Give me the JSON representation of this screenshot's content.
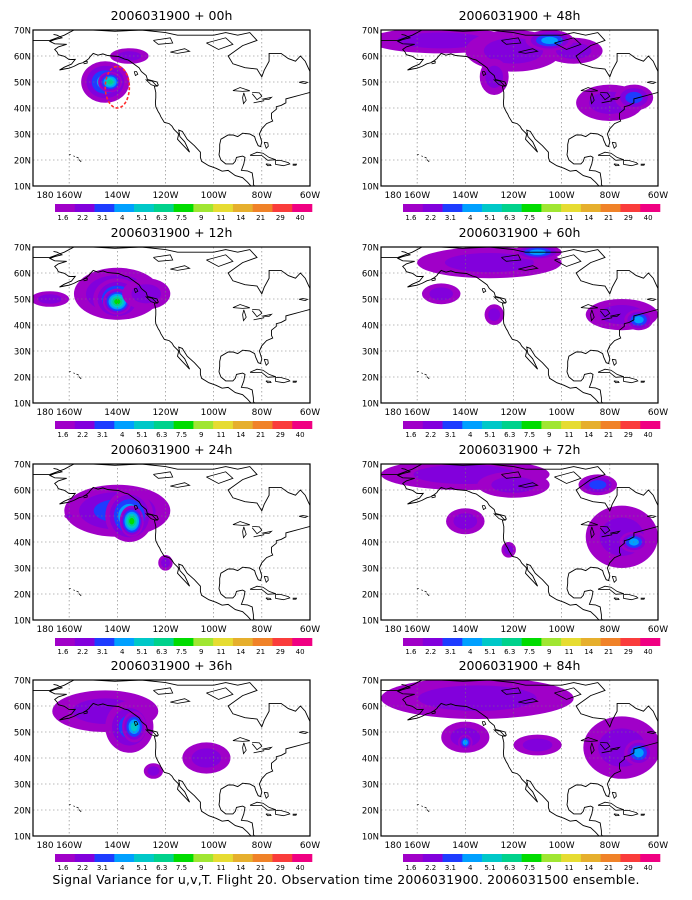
{
  "caption": "Signal Variance for u,v,T. Flight 20. Observation time 2006031900. 2006031500 ensemble.",
  "colorbar": {
    "labels": [
      "1.6",
      "2.2",
      "3.1",
      "4",
      "5.1",
      "6.3",
      "7.5",
      "9",
      "11",
      "14",
      "21",
      "29",
      "40"
    ],
    "colors": [
      "#a000c8",
      "#8200dc",
      "#1e3cff",
      "#00a0ff",
      "#00c8c8",
      "#00d28c",
      "#00dc00",
      "#a0e632",
      "#e6dc32",
      "#e6af2d",
      "#f08228",
      "#fa3c3c",
      "#f00082"
    ]
  },
  "axes": {
    "x_ticks": [
      "180",
      "160W",
      "140W",
      "120W",
      "100W",
      "80W",
      "60W"
    ],
    "y_ticks": [
      "10N",
      "20N",
      "30N",
      "40N",
      "50N",
      "60N",
      "70N"
    ],
    "lon_range": [
      -175,
      -60
    ],
    "lat_range": [
      10,
      70
    ]
  },
  "chart_data": [
    {
      "type": "heatmap",
      "title": "2006031900 + 00h",
      "blobs": [
        {
          "lon": -145,
          "lat": 50,
          "rlon": 10,
          "rlat": 8,
          "level": 3
        },
        {
          "lon": -143,
          "lat": 50,
          "rlon": 5,
          "rlat": 4,
          "level": 5
        },
        {
          "lon": -135,
          "lat": 60,
          "rlon": 8,
          "rlat": 3,
          "level": 1
        }
      ],
      "overlay": {
        "lon": -140,
        "lat": 48,
        "rlon": 5,
        "rlat": 8,
        "color": "#ff2a2a"
      }
    },
    {
      "type": "heatmap",
      "title": "2006031900 + 48h",
      "blobs": [
        {
          "lon": -150,
          "lat": 66,
          "rlon": 30,
          "rlat": 5,
          "level": 1
        },
        {
          "lon": -120,
          "lat": 62,
          "rlon": 20,
          "rlat": 8,
          "level": 1
        },
        {
          "lon": -128,
          "lat": 52,
          "rlon": 6,
          "rlat": 7,
          "level": 1
        },
        {
          "lon": -80,
          "lat": 42,
          "rlon": 14,
          "rlat": 7,
          "level": 1
        },
        {
          "lon": -70,
          "lat": 44,
          "rlon": 8,
          "rlat": 5,
          "level": 2
        },
        {
          "lon": -95,
          "lat": 62,
          "rlon": 12,
          "rlat": 5,
          "level": 1
        },
        {
          "lon": -105,
          "lat": 66,
          "rlon": 10,
          "rlat": 4,
          "level": 3
        }
      ]
    },
    {
      "type": "heatmap",
      "title": "2006031900 + 12h",
      "blobs": [
        {
          "lon": -140,
          "lat": 52,
          "rlon": 18,
          "rlat": 10,
          "level": 2
        },
        {
          "lon": -140,
          "lat": 50,
          "rlon": 10,
          "rlat": 8,
          "level": 4
        },
        {
          "lon": -140,
          "lat": 49,
          "rlon": 6,
          "rlat": 5,
          "level": 6
        },
        {
          "lon": -168,
          "lat": 50,
          "rlon": 8,
          "rlat": 3,
          "level": 1
        },
        {
          "lon": -128,
          "lat": 52,
          "rlon": 10,
          "rlat": 6,
          "level": 1
        }
      ]
    },
    {
      "type": "heatmap",
      "title": "2006031900 + 60h",
      "blobs": [
        {
          "lon": -130,
          "lat": 64,
          "rlon": 30,
          "rlat": 6,
          "level": 1
        },
        {
          "lon": -110,
          "lat": 68,
          "rlon": 10,
          "rlat": 3,
          "level": 3
        },
        {
          "lon": -150,
          "lat": 52,
          "rlon": 8,
          "rlat": 4,
          "level": 1
        },
        {
          "lon": -128,
          "lat": 44,
          "rlon": 4,
          "rlat": 4,
          "level": 1
        },
        {
          "lon": -75,
          "lat": 44,
          "rlon": 15,
          "rlat": 6,
          "level": 1
        },
        {
          "lon": -68,
          "lat": 42,
          "rlon": 6,
          "rlat": 4,
          "level": 3
        }
      ]
    },
    {
      "type": "heatmap",
      "title": "2006031900 + 24h",
      "blobs": [
        {
          "lon": -140,
          "lat": 52,
          "rlon": 22,
          "rlat": 10,
          "level": 2
        },
        {
          "lon": -135,
          "lat": 50,
          "rlon": 10,
          "rlat": 10,
          "level": 4
        },
        {
          "lon": -134,
          "lat": 48,
          "rlon": 5,
          "rlat": 6,
          "level": 6
        },
        {
          "lon": -120,
          "lat": 32,
          "rlon": 3,
          "rlat": 3,
          "level": 1
        },
        {
          "lon": -160,
          "lat": 50,
          "rlon": 2,
          "rlat": 1,
          "level": 1
        }
      ]
    },
    {
      "type": "heatmap",
      "title": "2006031900 + 72h",
      "blobs": [
        {
          "lon": -140,
          "lat": 66,
          "rlon": 35,
          "rlat": 6,
          "level": 1
        },
        {
          "lon": -140,
          "lat": 48,
          "rlon": 8,
          "rlat": 5,
          "level": 1
        },
        {
          "lon": -120,
          "lat": 62,
          "rlon": 15,
          "rlat": 5,
          "level": 1
        },
        {
          "lon": -122,
          "lat": 37,
          "rlon": 3,
          "rlat": 3,
          "level": 1
        },
        {
          "lon": -75,
          "lat": 42,
          "rlon": 15,
          "rlat": 12,
          "level": 1
        },
        {
          "lon": -70,
          "lat": 40,
          "rlon": 6,
          "rlat": 4,
          "level": 3
        },
        {
          "lon": -85,
          "lat": 62,
          "rlon": 8,
          "rlat": 4,
          "level": 2
        }
      ]
    },
    {
      "type": "heatmap",
      "title": "2006031900 + 36h",
      "blobs": [
        {
          "lon": -145,
          "lat": 58,
          "rlon": 22,
          "rlat": 8,
          "level": 1
        },
        {
          "lon": -135,
          "lat": 52,
          "rlon": 10,
          "rlat": 10,
          "level": 2
        },
        {
          "lon": -133,
          "lat": 52,
          "rlon": 5,
          "rlat": 6,
          "level": 4
        },
        {
          "lon": -103,
          "lat": 40,
          "rlon": 10,
          "rlat": 6,
          "level": 1
        },
        {
          "lon": -125,
          "lat": 35,
          "rlon": 4,
          "rlat": 3,
          "level": 1
        }
      ]
    },
    {
      "type": "heatmap",
      "title": "2006031900 + 84h",
      "blobs": [
        {
          "lon": -135,
          "lat": 63,
          "rlon": 40,
          "rlat": 8,
          "level": 1
        },
        {
          "lon": -140,
          "lat": 48,
          "rlon": 10,
          "rlat": 6,
          "level": 1
        },
        {
          "lon": -140,
          "lat": 46,
          "rlon": 3,
          "rlat": 3,
          "level": 3
        },
        {
          "lon": -110,
          "lat": 45,
          "rlon": 10,
          "rlat": 4,
          "level": 1
        },
        {
          "lon": -75,
          "lat": 44,
          "rlon": 16,
          "rlat": 12,
          "level": 1
        },
        {
          "lon": -68,
          "lat": 42,
          "rlon": 6,
          "rlat": 5,
          "level": 3
        }
      ]
    }
  ]
}
